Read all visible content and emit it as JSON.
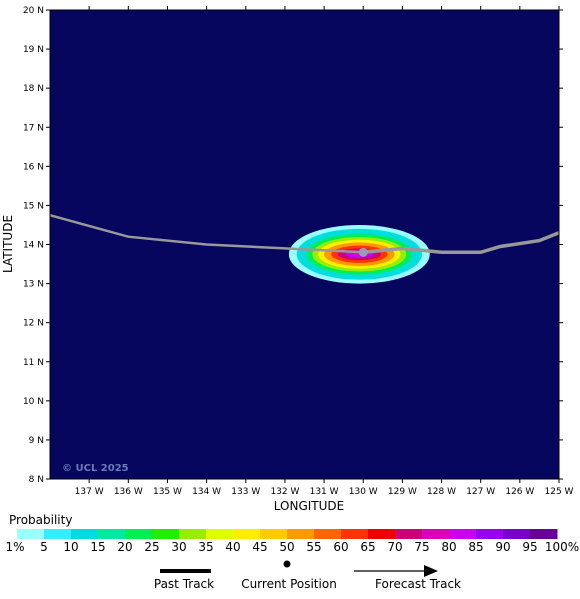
{
  "map": {
    "lat_ticks": [
      "8 N",
      "9 N",
      "10 N",
      "11 N",
      "12 N",
      "13 N",
      "14 N",
      "15 N",
      "16 N",
      "17 N",
      "18 N",
      "19 N",
      "20 N"
    ],
    "lon_ticks": [
      "137 W",
      "136 W",
      "135 W",
      "134 W",
      "133 W",
      "132 W",
      "131 W",
      "130 W",
      "129 W",
      "128 W",
      "127 W",
      "126 W",
      "125 W"
    ],
    "x_axis_title": "LONGITUDE",
    "y_axis_title": "LATITUDE",
    "copyright": "© UCL 2025",
    "colors": {
      "ocean": "#06065f",
      "track": "#999999",
      "current_marker": "#9a9ab0"
    }
  },
  "chart_data": {
    "type": "heatmap",
    "xlabel": "LONGITUDE",
    "ylabel": "LATITUDE",
    "xlim": [
      -138.0,
      -125.0
    ],
    "ylim": [
      8,
      20
    ],
    "grid": false,
    "current_position": {
      "lon": -130.0,
      "lat": 13.8
    },
    "past_track": [
      {
        "lon": -138.0,
        "lat": 14.75
      },
      {
        "lon": -136.0,
        "lat": 14.2
      },
      {
        "lon": -134.0,
        "lat": 14.0
      },
      {
        "lon": -132.0,
        "lat": 13.9
      },
      {
        "lon": -130.0,
        "lat": 13.8
      }
    ],
    "forecast_track": [
      {
        "lon": -130.0,
        "lat": 13.8
      },
      {
        "lon": -129.0,
        "lat": 13.9
      },
      {
        "lon": -128.0,
        "lat": 13.8
      },
      {
        "lon": -127.0,
        "lat": 13.8
      },
      {
        "lon": -126.5,
        "lat": 13.95
      },
      {
        "lon": -125.5,
        "lat": 14.1
      },
      {
        "lon": -125.0,
        "lat": 14.3
      }
    ],
    "probability_field": {
      "center": {
        "lon": -130.1,
        "lat": 13.75
      },
      "levels": [
        {
          "value": 1,
          "rx_deg": 1.8,
          "ry_deg": 0.75
        },
        {
          "value": 10,
          "rx_deg": 1.6,
          "ry_deg": 0.65
        },
        {
          "value": 20,
          "rx_deg": 1.35,
          "ry_deg": 0.52
        },
        {
          "value": 30,
          "rx_deg": 1.2,
          "ry_deg": 0.44
        },
        {
          "value": 40,
          "rx_deg": 1.05,
          "ry_deg": 0.37
        },
        {
          "value": 50,
          "rx_deg": 0.9,
          "ry_deg": 0.3
        },
        {
          "value": 60,
          "rx_deg": 0.72,
          "ry_deg": 0.22
        },
        {
          "value": 70,
          "rx_deg": 0.55,
          "ry_deg": 0.15
        },
        {
          "value": 80,
          "rx_deg": 0.35,
          "ry_deg": 0.09
        }
      ]
    }
  },
  "legend": {
    "title": "Probability",
    "bins": [
      {
        "label": "1%",
        "color": "#99ffff"
      },
      {
        "label": "5",
        "color": "#33eeff"
      },
      {
        "label": "10",
        "color": "#00dddd"
      },
      {
        "label": "15",
        "color": "#00e9a0"
      },
      {
        "label": "20",
        "color": "#00ee55"
      },
      {
        "label": "25",
        "color": "#22ee00"
      },
      {
        "label": "30",
        "color": "#99ee00"
      },
      {
        "label": "35",
        "color": "#ddff00"
      },
      {
        "label": "40",
        "color": "#ffee00"
      },
      {
        "label": "45",
        "color": "#ffcc00"
      },
      {
        "label": "50",
        "color": "#ff9900"
      },
      {
        "label": "55",
        "color": "#ff6600"
      },
      {
        "label": "60",
        "color": "#ff3300"
      },
      {
        "label": "65",
        "color": "#ee0000"
      },
      {
        "label": "70",
        "color": "#cc0077"
      },
      {
        "label": "75",
        "color": "#dd00bb"
      },
      {
        "label": "80",
        "color": "#cc00ee"
      },
      {
        "label": "85",
        "color": "#9900ee"
      },
      {
        "label": "90",
        "color": "#7700cc"
      },
      {
        "label": "95",
        "color": "#660099"
      },
      {
        "label": "100%",
        "color": "#550055"
      }
    ],
    "symbols": {
      "past_track": "Past Track",
      "current_position": "Current Position",
      "forecast_track": "Forecast Track"
    }
  }
}
